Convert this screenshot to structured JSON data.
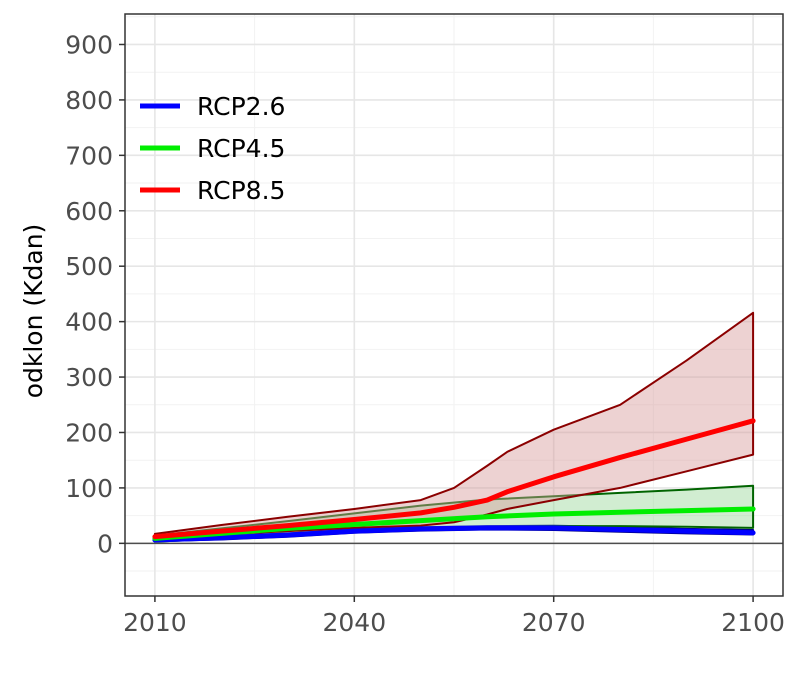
{
  "chart_data": {
    "type": "line",
    "title": "",
    "xlabel": "",
    "ylabel": "odklon (Kdan)",
    "xlim": [
      2005.5,
      2104.5
    ],
    "ylim": [
      -95,
      955
    ],
    "x_ticks": [
      2010,
      2040,
      2070,
      2100
    ],
    "y_ticks": [
      0,
      100,
      200,
      300,
      400,
      500,
      600,
      700,
      800,
      900
    ],
    "grid": true,
    "legend_position": "top-left",
    "baseline": 0,
    "series": [
      {
        "name": "RCP2.6",
        "color": "#0000ff",
        "ribbon_fill": "#9999ff",
        "ribbon_stroke": "#00008b",
        "x": [
          2010,
          2020,
          2030,
          2040,
          2050,
          2060,
          2070,
          2080,
          2090,
          2100
        ],
        "mean": [
          6,
          10,
          15,
          22,
          26,
          28,
          28,
          25,
          22,
          19
        ],
        "lower": [
          4,
          7,
          12,
          19,
          23,
          25,
          24,
          21,
          18,
          16
        ],
        "upper": [
          8,
          13,
          18,
          25,
          29,
          31,
          32,
          29,
          26,
          24
        ]
      },
      {
        "name": "RCP4.5",
        "color": "#00ee00",
        "ribbon_fill": "#99d699",
        "ribbon_stroke": "#006400",
        "x": [
          2010,
          2020,
          2030,
          2040,
          2050,
          2060,
          2070,
          2080,
          2090,
          2100
        ],
        "mean": [
          9,
          18,
          27,
          34,
          41,
          48,
          53,
          56,
          59,
          62
        ],
        "lower": [
          3,
          8,
          14,
          22,
          27,
          30,
          31,
          31,
          30,
          28
        ],
        "upper": [
          14,
          27,
          40,
          54,
          68,
          79,
          85,
          91,
          97,
          104
        ]
      },
      {
        "name": "RCP8.5",
        "color": "#ff0000",
        "ribbon_fill": "#d79c9c",
        "ribbon_stroke": "#8b0000",
        "x": [
          2010,
          2020,
          2030,
          2040,
          2050,
          2055,
          2060,
          2063,
          2070,
          2080,
          2090,
          2100
        ],
        "mean": [
          12,
          22,
          32,
          43,
          55,
          65,
          78,
          93,
          120,
          155,
          188,
          221
        ],
        "lower": [
          8,
          16,
          22,
          28,
          32,
          38,
          52,
          62,
          78,
          100,
          130,
          160
        ],
        "upper": [
          17,
          33,
          48,
          62,
          78,
          100,
          140,
          165,
          205,
          250,
          330,
          416
        ]
      }
    ]
  }
}
